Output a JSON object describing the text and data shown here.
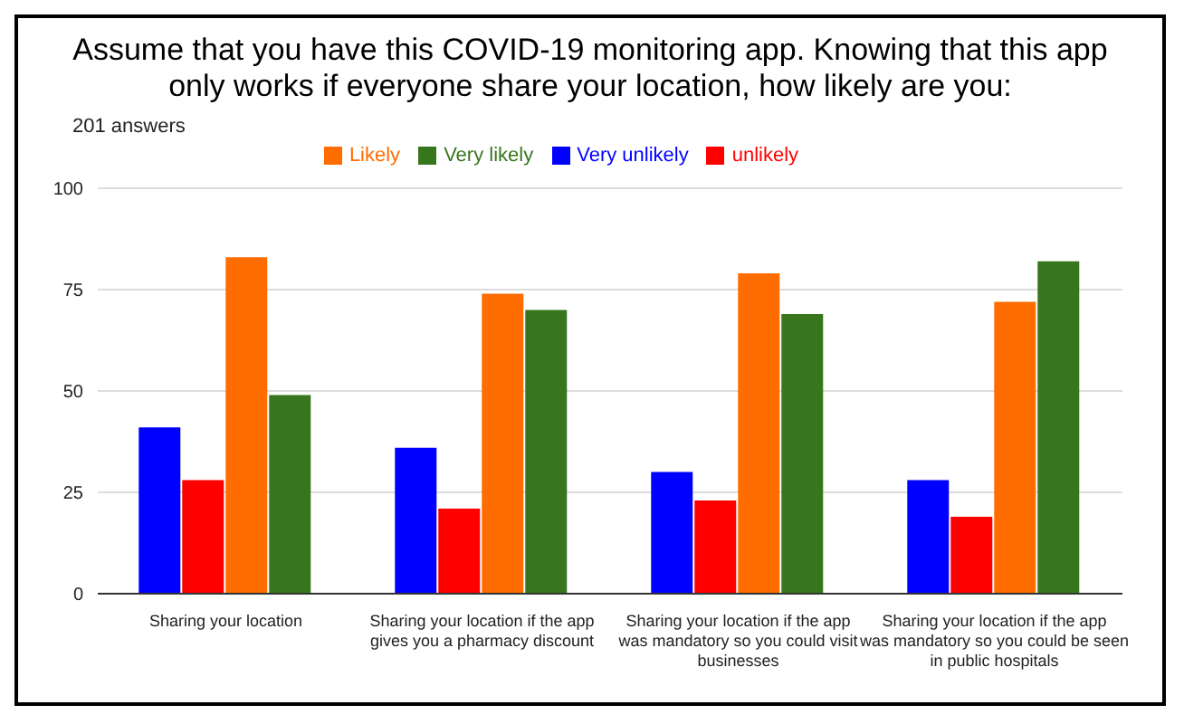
{
  "chart_data": {
    "type": "bar",
    "title": "Assume that you have this COVID-19 monitoring app. Knowing that this app only works if everyone share your location, how likely are you:",
    "subtitle": "201 answers",
    "categories": [
      "Sharing your location",
      "Sharing your location if the app gives you a pharmacy discount",
      "Sharing your location if the app was mandatory so you could visit businesses",
      "Sharing your location if the app was mandatory so you could be seen in public hospitals"
    ],
    "series": [
      {
        "name": "Very unlikely",
        "color": "#0000ff",
        "values": [
          41,
          36,
          30,
          28
        ]
      },
      {
        "name": "unlikely",
        "color": "#ff0000",
        "values": [
          28,
          21,
          23,
          19
        ]
      },
      {
        "name": "Likely",
        "color": "#ff6d00",
        "values": [
          83,
          74,
          79,
          72
        ]
      },
      {
        "name": "Very likely",
        "color": "#38761d",
        "values": [
          49,
          70,
          69,
          82
        ]
      }
    ],
    "ylim": [
      0,
      100
    ],
    "yticks": [
      0,
      25,
      50,
      75,
      100
    ],
    "grid": "y",
    "legend": "top"
  }
}
